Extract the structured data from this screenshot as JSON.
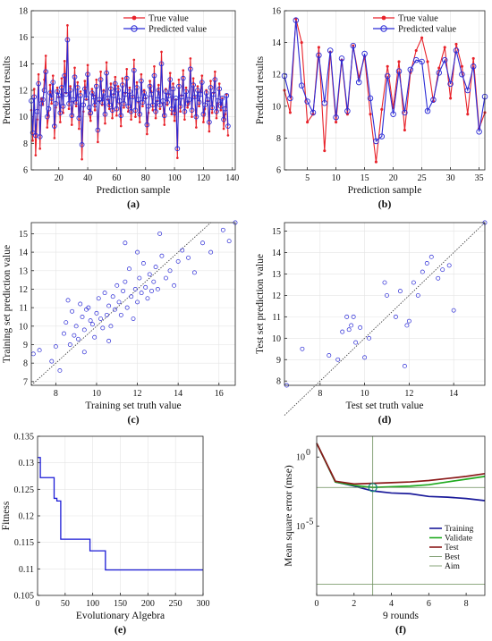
{
  "colors": {
    "true_value": "#e8222a",
    "predicted_value": "#2b2bd6",
    "scatter": "#2b2bd6",
    "fitness": "#1a1ad6",
    "training": "#1a1a9a",
    "validate": "#1faa1f",
    "test": "#8b1a1a",
    "best_aim": "#6b8e5a",
    "grid": "#e4e4e4"
  },
  "chart_data": [
    {
      "panel": "(a)",
      "type": "line",
      "xlabel": "Prediction sample",
      "ylabel": "Predicted results",
      "xlim": [
        1,
        142
      ],
      "ylim": [
        6,
        18
      ],
      "xticks": [
        "20",
        "40",
        "60",
        "80",
        "100",
        "120",
        "140"
      ],
      "yticks": [
        "6",
        "8",
        "10",
        "12",
        "14",
        "16",
        "18"
      ],
      "legend": "top-right",
      "series": [
        {
          "name": "True value",
          "color": "true_value",
          "marker": "dot",
          "values": [
            10.5,
            8.2,
            12.1,
            7.1,
            9.8,
            13.2,
            7.6,
            11.4,
            10.9,
            12.8,
            14.6,
            9.2,
            10.1,
            12.4,
            11.0,
            13.1,
            8.4,
            10.7,
            12.2,
            11.5,
            9.6,
            12.9,
            10.3,
            14.2,
            11.8,
            16.9,
            10.6,
            12.3,
            9.4,
            11.1,
            13.7,
            10.8,
            12.6,
            9.1,
            11.9,
            6.8,
            10.4,
            12.7,
            11.3,
            13.9,
            10.2,
            9.7,
            12.1,
            11.6,
            10.5,
            12.8,
            8.1,
            11.2,
            13.4,
            10.9,
            12.0,
            9.5,
            14.1,
            11.3,
            10.6,
            12.5,
            9.9,
            11.7,
            13.0,
            10.1,
            12.3,
            11.0,
            9.3,
            12.9,
            10.7,
            11.8,
            13.6,
            10.4,
            12.2,
            9.8,
            11.5,
            14.3,
            10.0,
            12.6,
            11.1,
            9.6,
            13.2,
            10.8,
            12.0,
            11.4,
            8.7,
            10.3,
            12.7,
            11.9,
            10.5,
            13.8,
            9.9,
            11.2,
            12.4,
            10.6,
            14.9,
            11.0,
            9.4,
            12.1,
            10.9,
            11.7,
            13.3,
            10.2,
            12.5,
            9.7,
            11.3,
            6.9,
            12.8,
            10.4,
            11.6,
            13.5,
            9.8,
            12.2,
            10.7,
            11.1,
            14.4,
            10.0,
            12.9,
            11.5,
            9.2,
            12.3,
            10.8,
            11.9,
            13.1,
            9.6,
            10.6,
            12.0,
            11.2,
            8.9,
            12.7,
            10.3,
            11.8,
            13.4,
            9.9,
            11.0,
            12.5,
            10.5,
            11.4,
            9.1,
            10.2,
            11.7,
            8.6
          ]
        },
        {
          "name": "Predicted value",
          "color": "predicted_value",
          "marker": "circle",
          "values": [
            11.2,
            8.8,
            11.5,
            8.6,
            10.4,
            12.5,
            8.5,
            11.0,
            11.3,
            12.0,
            13.4,
            10.0,
            10.6,
            11.8,
            11.4,
            12.6,
            9.3,
            11.0,
            11.9,
            11.6,
            10.3,
            12.2,
            10.8,
            13.1,
            11.7,
            15.8,
            11.0,
            12.0,
            10.1,
            11.3,
            13.0,
            11.1,
            12.2,
            9.9,
            11.6,
            7.9,
            10.9,
            12.1,
            11.4,
            13.2,
            10.7,
            10.3,
            11.8,
            11.5,
            10.9,
            12.3,
            9.0,
            11.3,
            12.8,
            11.1,
            11.8,
            10.2,
            13.3,
            11.4,
            10.9,
            12.1,
            10.5,
            11.6,
            12.5,
            10.6,
            12.0,
            11.2,
            10.1,
            12.4,
            11.0,
            11.7,
            12.9,
            10.8,
            11.9,
            10.4,
            11.5,
            13.5,
            10.5,
            12.2,
            11.3,
            10.2,
            12.7,
            11.1,
            11.8,
            11.5,
            9.4,
            10.8,
            12.3,
            11.7,
            10.9,
            13.1,
            10.4,
            11.3,
            12.0,
            10.9,
            14.0,
            11.2,
            10.1,
            11.9,
            11.1,
            11.6,
            12.8,
            10.6,
            12.1,
            10.3,
            11.4,
            7.6,
            12.3,
            10.8,
            11.5,
            12.9,
            10.4,
            11.9,
            11.0,
            11.3,
            13.6,
            10.5,
            12.4,
            11.5,
            10.0,
            12.0,
            11.1,
            11.7,
            12.6,
            10.2,
            10.9,
            11.8,
            11.3,
            9.6,
            12.2,
            10.7,
            11.7,
            12.8,
            10.4,
            11.2,
            12.1,
            10.8,
            11.4,
            9.8,
            10.6,
            11.6,
            9.3
          ]
        }
      ]
    },
    {
      "panel": "(b)",
      "type": "line",
      "xlabel": "Prediction sample",
      "ylabel": "Predicted results",
      "xlim": [
        1,
        36
      ],
      "ylim": [
        6,
        16
      ],
      "xticks": [
        "5",
        "10",
        "15",
        "20",
        "25",
        "30",
        "35"
      ],
      "yticks": [
        "6",
        "8",
        "10",
        "12",
        "14",
        "16"
      ],
      "legend": "top-right",
      "series": [
        {
          "name": "True value",
          "color": "true_value",
          "marker": "dot",
          "values": [
            11.0,
            9.6,
            15.5,
            14.0,
            9.0,
            9.5,
            13.7,
            7.2,
            13.4,
            9.0,
            12.9,
            9.5,
            13.8,
            11.8,
            13.1,
            9.5,
            6.5,
            9.8,
            12.5,
            9.9,
            12.8,
            8.5,
            12.1,
            13.5,
            14.3,
            12.8,
            10.3,
            12.4,
            13.7,
            10.5,
            13.9,
            12.5,
            9.5,
            13.0,
            8.6,
            9.6
          ]
        },
        {
          "name": "Predicted value",
          "color": "predicted_value",
          "marker": "circle",
          "values": [
            11.9,
            10.5,
            15.4,
            11.3,
            10.3,
            9.6,
            13.2,
            10.2,
            13.5,
            9.3,
            13.0,
            9.7,
            13.8,
            11.5,
            13.3,
            10.5,
            7.8,
            8.1,
            11.9,
            9.5,
            12.2,
            9.6,
            12.3,
            12.9,
            12.8,
            9.7,
            10.4,
            12.1,
            12.9,
            11.4,
            13.5,
            12.0,
            11.0,
            12.5,
            8.4,
            10.6
          ]
        }
      ]
    },
    {
      "panel": "(c)",
      "type": "scatter",
      "xlabel": "Training set truth value",
      "ylabel": "Training set prediction value",
      "xlim": [
        6.8,
        16.8
      ],
      "ylim": [
        6.8,
        15.6
      ],
      "xticks": [
        "8",
        "10",
        "12",
        "14",
        "16"
      ],
      "yticks": [
        "7",
        "8",
        "9",
        "10",
        "11",
        "12",
        "13",
        "14",
        "15"
      ],
      "diagonal": true,
      "points": [
        [
          6.9,
          8.5
        ],
        [
          7.2,
          8.7
        ],
        [
          7.8,
          8.1
        ],
        [
          8.0,
          8.9
        ],
        [
          8.2,
          7.6
        ],
        [
          8.4,
          9.6
        ],
        [
          8.5,
          10.2
        ],
        [
          8.7,
          9.0
        ],
        [
          8.8,
          10.8
        ],
        [
          8.9,
          9.5
        ],
        [
          9.0,
          10.0
        ],
        [
          9.1,
          9.3
        ],
        [
          9.2,
          11.2
        ],
        [
          9.3,
          10.5
        ],
        [
          9.4,
          9.8
        ],
        [
          9.5,
          10.9
        ],
        [
          9.6,
          11.0
        ],
        [
          9.7,
          10.3
        ],
        [
          9.8,
          10.1
        ],
        [
          9.9,
          9.4
        ],
        [
          10.0,
          10.7
        ],
        [
          10.1,
          11.5
        ],
        [
          10.2,
          10.4
        ],
        [
          10.3,
          9.9
        ],
        [
          10.4,
          11.8
        ],
        [
          10.5,
          10.6
        ],
        [
          10.6,
          11.1
        ],
        [
          10.7,
          10.0
        ],
        [
          10.8,
          11.6
        ],
        [
          10.9,
          10.9
        ],
        [
          11.0,
          12.2
        ],
        [
          11.1,
          11.3
        ],
        [
          11.2,
          10.6
        ],
        [
          11.3,
          11.9
        ],
        [
          11.4,
          12.4
        ],
        [
          11.5,
          11.0
        ],
        [
          11.6,
          13.1
        ],
        [
          11.7,
          11.6
        ],
        [
          11.8,
          10.4
        ],
        [
          11.9,
          12.0
        ],
        [
          12.0,
          11.3
        ],
        [
          12.1,
          12.6
        ],
        [
          12.2,
          11.8
        ],
        [
          12.3,
          13.4
        ],
        [
          12.4,
          12.1
        ],
        [
          12.5,
          11.5
        ],
        [
          12.6,
          12.8
        ],
        [
          12.7,
          11.9
        ],
        [
          12.8,
          12.4
        ],
        [
          12.9,
          13.2
        ],
        [
          13.0,
          12.0
        ],
        [
          13.2,
          13.8
        ],
        [
          13.4,
          12.6
        ],
        [
          13.6,
          13.0
        ],
        [
          13.8,
          12.2
        ],
        [
          14.0,
          13.5
        ],
        [
          14.2,
          14.1
        ],
        [
          14.5,
          13.7
        ],
        [
          14.8,
          12.9
        ],
        [
          15.2,
          14.5
        ],
        [
          15.6,
          14.0
        ],
        [
          16.2,
          15.2
        ],
        [
          16.5,
          14.6
        ],
        [
          16.8,
          15.6
        ],
        [
          9.4,
          8.6
        ],
        [
          10.6,
          9.2
        ],
        [
          11.4,
          14.5
        ],
        [
          12.0,
          14.0
        ],
        [
          13.1,
          15.0
        ],
        [
          8.6,
          11.4
        ]
      ]
    },
    {
      "panel": "(d)",
      "type": "scatter",
      "xlabel": "Test set truth value",
      "ylabel": "Test set prediction value",
      "xlim": [
        6.4,
        15.4
      ],
      "ylim": [
        7.8,
        15.4
      ],
      "xticks": [
        "8",
        "10",
        "12",
        "14"
      ],
      "yticks": [
        "8",
        "9",
        "10",
        "11",
        "12",
        "13",
        "14",
        "15"
      ],
      "diagonal": true,
      "points": [
        [
          6.5,
          7.8
        ],
        [
          7.2,
          9.5
        ],
        [
          8.4,
          9.2
        ],
        [
          8.8,
          9.0
        ],
        [
          9.0,
          10.3
        ],
        [
          9.2,
          11.0
        ],
        [
          9.4,
          10.6
        ],
        [
          9.5,
          11.0
        ],
        [
          9.6,
          9.8
        ],
        [
          9.8,
          10.5
        ],
        [
          10.0,
          9.1
        ],
        [
          10.2,
          10.0
        ],
        [
          10.9,
          12.6
        ],
        [
          11.0,
          12.0
        ],
        [
          11.4,
          11.0
        ],
        [
          11.6,
          12.2
        ],
        [
          11.8,
          8.7
        ],
        [
          11.9,
          10.6
        ],
        [
          12.0,
          10.8
        ],
        [
          12.2,
          12.6
        ],
        [
          12.4,
          12.0
        ],
        [
          12.6,
          13.1
        ],
        [
          12.8,
          13.5
        ],
        [
          13.0,
          13.8
        ],
        [
          13.3,
          12.8
        ],
        [
          13.5,
          13.2
        ],
        [
          13.8,
          13.4
        ],
        [
          14.0,
          11.3
        ],
        [
          15.4,
          15.4
        ],
        [
          9.3,
          10.4
        ]
      ]
    },
    {
      "panel": "(e)",
      "type": "line",
      "xlabel": "Evolutionary Algebra",
      "ylabel": "Fitness",
      "xlim": [
        0,
        300
      ],
      "ylim": [
        0.105,
        0.135
      ],
      "xticks": [
        "0",
        "50",
        "100",
        "150",
        "200",
        "250",
        "300"
      ],
      "yticks": [
        "0.105",
        "0.11",
        "0.115",
        "0.12",
        "0.125",
        "0.13",
        "0.135"
      ],
      "step": true,
      "x": [
        0,
        5,
        5,
        30,
        30,
        35,
        35,
        42,
        42,
        95,
        95,
        123,
        123,
        300
      ],
      "y": [
        0.131,
        0.131,
        0.1272,
        0.1272,
        0.1233,
        0.1233,
        0.1228,
        0.1228,
        0.1156,
        0.1156,
        0.1134,
        0.1134,
        0.1098,
        0.1098
      ]
    },
    {
      "panel": "(f)",
      "type": "line",
      "xlabel": "9 rounds",
      "ylabel": "Mean square error (mse)",
      "xlim": [
        0,
        9
      ],
      "xticks": [
        "0",
        "2",
        "4",
        "6",
        "8"
      ],
      "yticks": [
        {
          "base": "10",
          "exp": "0",
          "logy": 0
        },
        {
          "base": "10",
          "exp": "-5",
          "logy": -5
        }
      ],
      "ylim_log10": [
        -10,
        1.5
      ],
      "legend": "bottom-right",
      "best_epoch": 3,
      "series": [
        {
          "name": "Training",
          "color": "training",
          "x": [
            0,
            1,
            2,
            3,
            4,
            5,
            6,
            7,
            8,
            9
          ],
          "log10_y": [
            1.0,
            -1.8,
            -2.1,
            -2.45,
            -2.6,
            -2.65,
            -2.85,
            -2.9,
            -3.0,
            -3.15
          ]
        },
        {
          "name": "Validate",
          "color": "validate",
          "x": [
            0,
            1,
            2,
            3,
            4,
            5,
            6,
            7,
            8,
            9
          ],
          "log10_y": [
            1.0,
            -1.8,
            -2.05,
            -2.2,
            -2.15,
            -2.1,
            -2.0,
            -1.8,
            -1.6,
            -1.4
          ]
        },
        {
          "name": "Test",
          "color": "test",
          "x": [
            0,
            1,
            2,
            3,
            4,
            5,
            6,
            7,
            8,
            9
          ],
          "log10_y": [
            1.0,
            -1.75,
            -1.95,
            -1.9,
            -1.85,
            -1.8,
            -1.7,
            -1.55,
            -1.4,
            -1.2
          ]
        },
        {
          "name": "Best",
          "color": "best_aim",
          "x": [
            0,
            9
          ],
          "log10_y": [
            -2.2,
            -2.2
          ]
        },
        {
          "name": "Aim",
          "color": "best_aim",
          "x": [
            0,
            9
          ],
          "log10_y": [
            -9.2,
            -9.2
          ]
        }
      ]
    }
  ]
}
